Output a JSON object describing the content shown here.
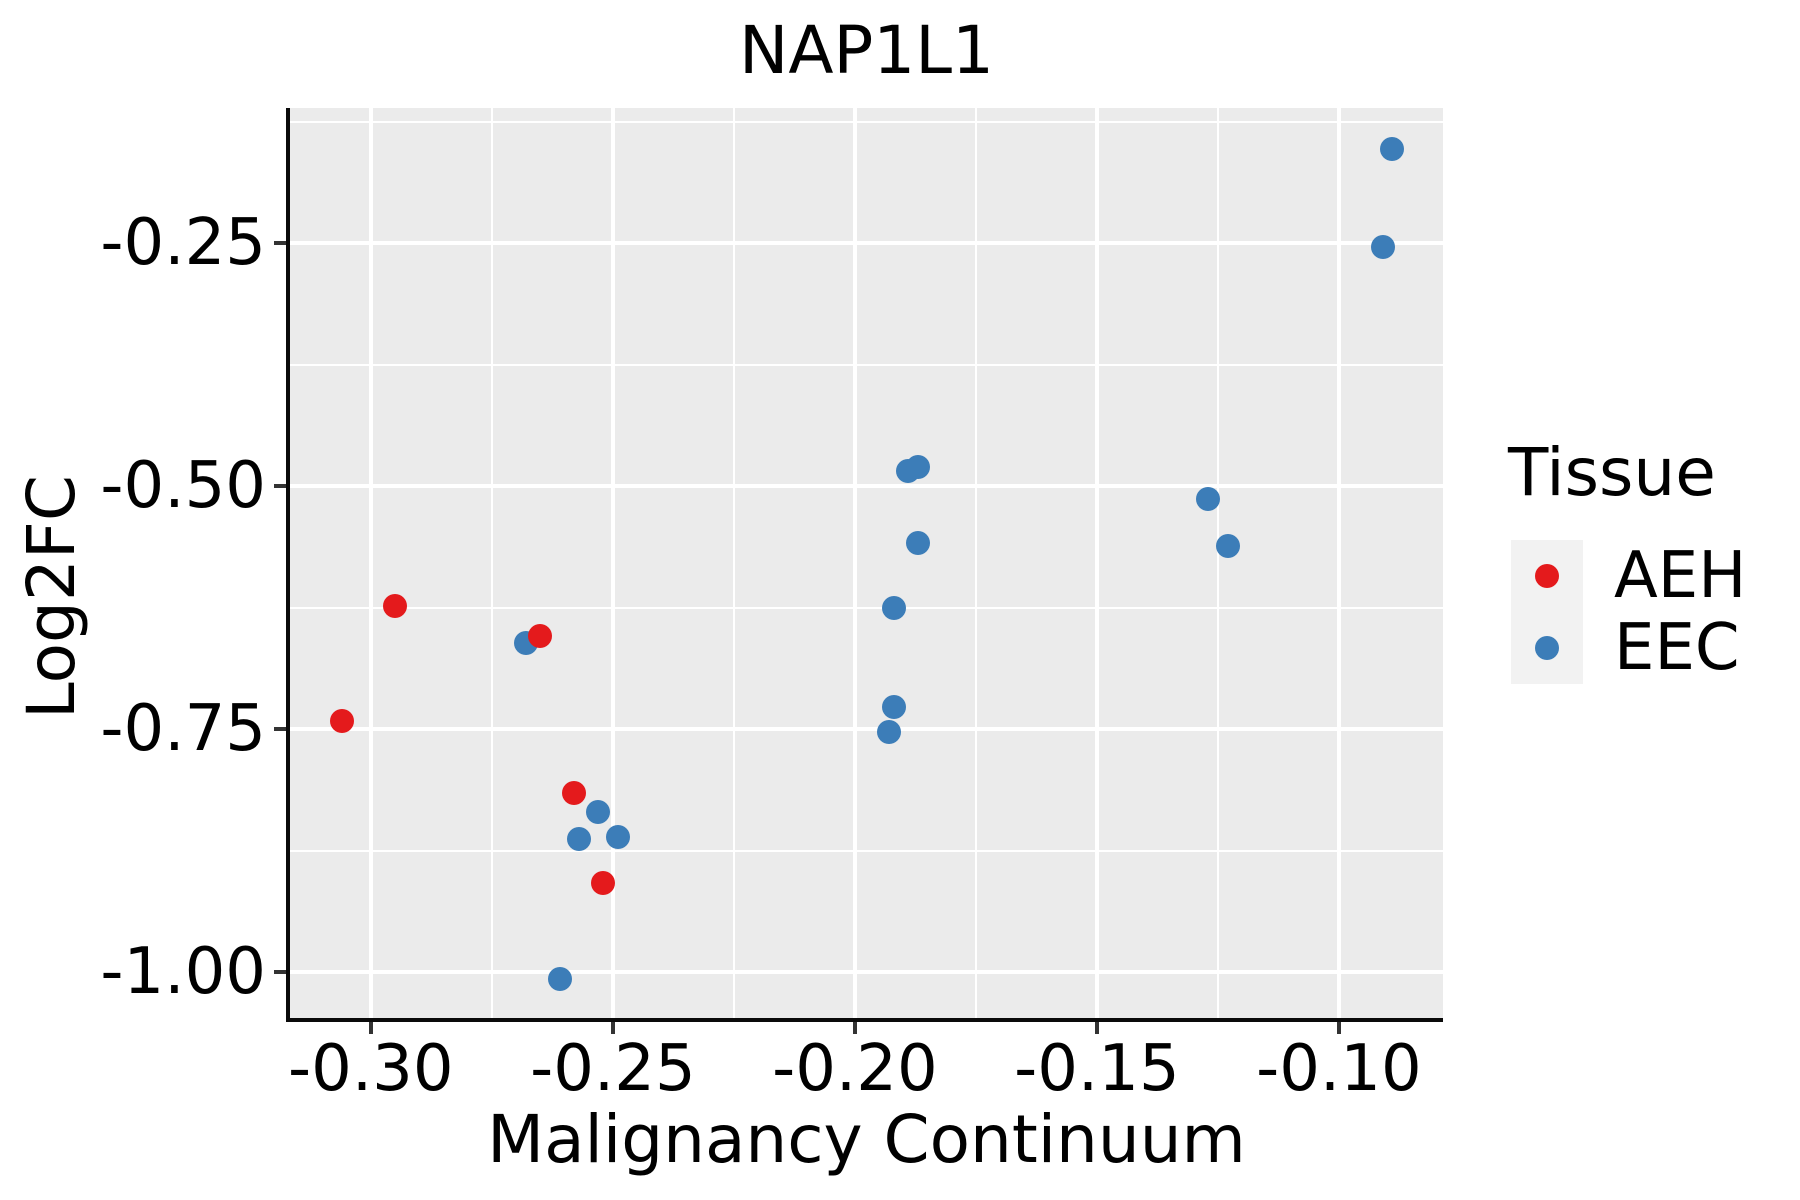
{
  "title": "NAP1L1",
  "axes": {
    "x": {
      "label": "Malignancy Continuum",
      "tick_labels": [
        "-0.30",
        "-0.25",
        "-0.20",
        "-0.15",
        "-0.10"
      ]
    },
    "y": {
      "label": "Log2FC",
      "tick_labels": [
        "-0.25",
        "-0.50",
        "-0.75",
        "-1.00"
      ]
    }
  },
  "legend": {
    "title": "Tissue",
    "entries": [
      {
        "label": "AEH",
        "color": "#E41A1C"
      },
      {
        "label": "EEC",
        "color": "#3C7DB8"
      }
    ]
  },
  "colors": {
    "panel_background": "#EBEBEB",
    "gridline": "#FFFFFF",
    "legend_key_background": "#F2F2F2",
    "aeh": "#E41A1C",
    "eec": "#3C7DB8"
  },
  "chart_data": {
    "type": "scatter",
    "title": "NAP1L1",
    "xlabel": "Malignancy Continuum",
    "ylabel": "Log2FC",
    "xlim": [
      -0.3167,
      -0.0785
    ],
    "ylim": [
      -1.0513,
      -0.1111
    ],
    "x_ticks": [
      -0.3,
      -0.25,
      -0.2,
      -0.15,
      -0.1
    ],
    "x_tick_labels": [
      "-0.30",
      "-0.25",
      "-0.20",
      "-0.15",
      "-0.10"
    ],
    "x_minor_ticks": [
      -0.275,
      -0.225,
      -0.175,
      -0.125
    ],
    "y_ticks": [
      -0.25,
      -0.5,
      -0.75,
      -1.0
    ],
    "y_tick_labels": [
      "-0.25",
      "-0.50",
      "-0.75",
      "-1.00"
    ],
    "y_minor_ticks": [
      -0.125,
      -0.375,
      -0.625,
      -0.875
    ],
    "grid": "major and minor, white on gray panel",
    "legend_title": "Tissue",
    "legend_position": "right",
    "series": [
      {
        "name": "EEC",
        "color": "#3C7DB8",
        "points": [
          [
            -0.268,
            -0.661
          ],
          [
            -0.261,
            -1.007
          ],
          [
            -0.257,
            -0.863
          ],
          [
            -0.253,
            -0.835
          ],
          [
            -0.249,
            -0.861
          ],
          [
            -0.193,
            -0.753
          ],
          [
            -0.192,
            -0.727
          ],
          [
            -0.192,
            -0.625
          ],
          [
            -0.189,
            -0.484
          ],
          [
            -0.187,
            -0.48
          ],
          [
            -0.187,
            -0.559
          ],
          [
            -0.127,
            -0.513
          ],
          [
            -0.123,
            -0.562
          ],
          [
            -0.091,
            -0.254
          ],
          [
            -0.089,
            -0.153
          ]
        ]
      },
      {
        "name": "AEH",
        "color": "#E41A1C",
        "points": [
          [
            -0.306,
            -0.742
          ],
          [
            -0.295,
            -0.623
          ],
          [
            -0.265,
            -0.654
          ],
          [
            -0.258,
            -0.816
          ],
          [
            -0.252,
            -0.908
          ]
        ]
      }
    ]
  }
}
